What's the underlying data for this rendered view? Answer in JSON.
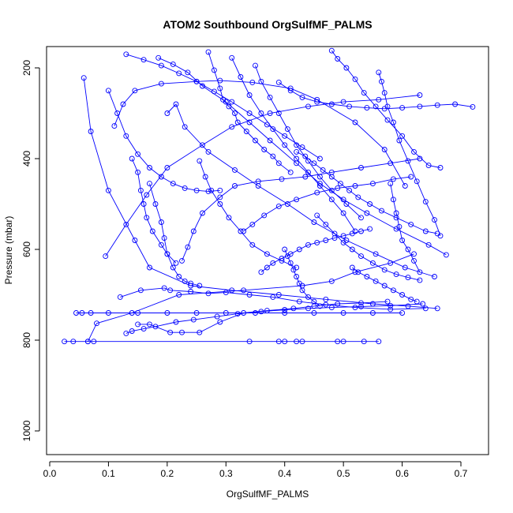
{
  "chart_data": {
    "type": "line",
    "title": "ATOM2 Southbound OrgSulfMF_PALMS",
    "xlabel": "OrgSulfMF_PALMS",
    "ylabel": "Pressure (mbar)",
    "xlim": [
      0.0,
      0.75
    ],
    "ylim": [
      1050,
      160
    ],
    "y_reversed": true,
    "x_ticks": [
      0.0,
      0.1,
      0.2,
      0.3,
      0.4,
      0.5,
      0.6,
      0.7
    ],
    "y_ticks": [
      200,
      400,
      600,
      800,
      1000
    ],
    "grid": false,
    "color": "#0000ff",
    "marker": "open-circle",
    "series": [
      {
        "x": [
          0.025,
          0.04,
          0.065,
          0.075,
          0.34,
          0.39,
          0.4,
          0.42,
          0.43,
          0.49,
          0.5,
          0.535,
          0.56
        ],
        "y": [
          803,
          803,
          803,
          803,
          803,
          803,
          803,
          803,
          803,
          803,
          803,
          803,
          803
        ]
      },
      {
        "x": [
          0.045,
          0.055,
          0.07,
          0.1,
          0.15,
          0.2,
          0.25,
          0.3,
          0.35,
          0.4,
          0.45,
          0.5,
          0.55,
          0.6
        ],
        "y": [
          740,
          740,
          740,
          740,
          740,
          740,
          740,
          740,
          740,
          740,
          740,
          740,
          740,
          740
        ]
      },
      {
        "x": [
          0.065,
          0.08,
          0.14,
          0.22,
          0.33,
          0.43,
          0.48,
          0.52,
          0.58,
          0.62
        ],
        "y": [
          803,
          763,
          740,
          700,
          690,
          680,
          670,
          650,
          630,
          610
        ]
      },
      {
        "x": [
          0.058,
          0.07,
          0.1,
          0.145,
          0.17,
          0.24,
          0.31,
          0.39,
          0.47,
          0.55,
          0.61,
          0.66
        ],
        "y": [
          222,
          340,
          470,
          580,
          640,
          680,
          690,
          700,
          710,
          720,
          725,
          730
        ]
      },
      {
        "x": [
          0.095,
          0.13,
          0.165,
          0.2,
          0.26,
          0.31,
          0.375,
          0.44,
          0.5,
          0.56,
          0.63
        ],
        "y": [
          615,
          545,
          480,
          420,
          370,
          330,
          300,
          285,
          275,
          270,
          260
        ]
      },
      {
        "x": [
          0.11,
          0.125,
          0.145,
          0.19,
          0.25,
          0.29,
          0.345,
          0.41,
          0.455,
          0.52,
          0.57,
          0.605
        ],
        "y": [
          328,
          280,
          250,
          235,
          230,
          228,
          232,
          245,
          270,
          320,
          380,
          460
        ]
      },
      {
        "x": [
          0.12,
          0.155,
          0.195,
          0.205,
          0.24,
          0.27,
          0.3,
          0.34,
          0.38,
          0.425,
          0.47,
          0.52,
          0.58,
          0.64
        ],
        "y": [
          705,
          690,
          685,
          690,
          693,
          697,
          695,
          700,
          705,
          715,
          722,
          728,
          732,
          730
        ]
      },
      {
        "x": [
          0.13,
          0.14,
          0.16,
          0.18,
          0.215,
          0.245,
          0.285,
          0.32,
          0.36,
          0.4,
          0.44,
          0.48,
          0.53,
          0.58,
          0.635
        ],
        "y": [
          785,
          780,
          775,
          770,
          760,
          755,
          748,
          742,
          737,
          733,
          730,
          728,
          726,
          724,
          720
        ]
      },
      {
        "x": [
          0.15,
          0.17,
          0.205,
          0.225,
          0.255,
          0.29,
          0.33,
          0.37,
          0.415,
          0.45,
          0.49,
          0.53,
          0.575
        ],
        "y": [
          765,
          765,
          783,
          783,
          783,
          760,
          740,
          735,
          730,
          725,
          720,
          718,
          715
        ]
      },
      {
        "x": [
          0.185,
          0.21,
          0.235,
          0.26,
          0.3,
          0.34,
          0.375,
          0.42,
          0.46,
          0.5,
          0.54,
          0.59,
          0.645,
          0.675
        ],
        "y": [
          178,
          192,
          210,
          240,
          275,
          320,
          360,
          410,
          455,
          490,
          520,
          555,
          590,
          612
        ]
      },
      {
        "x": [
          0.2,
          0.215,
          0.23,
          0.27,
          0.315,
          0.355,
          0.405,
          0.45,
          0.505,
          0.555,
          0.605,
          0.655
        ],
        "y": [
          300,
          280,
          330,
          385,
          425,
          460,
          500,
          540,
          580,
          610,
          640,
          660
        ]
      },
      {
        "x": [
          0.225,
          0.235,
          0.245,
          0.26,
          0.29,
          0.315,
          0.355,
          0.395,
          0.435,
          0.48,
          0.53,
          0.58,
          0.63
        ],
        "y": [
          625,
          595,
          560,
          520,
          485,
          460,
          450,
          445,
          440,
          430,
          420,
          410,
          400
        ]
      },
      {
        "x": [
          0.27,
          0.28,
          0.29,
          0.295,
          0.305,
          0.315,
          0.32,
          0.335,
          0.35,
          0.365,
          0.38,
          0.39,
          0.41
        ],
        "y": [
          165,
          205,
          245,
          270,
          285,
          300,
          320,
          340,
          360,
          380,
          395,
          410,
          430
        ]
      },
      {
        "x": [
          0.31,
          0.325,
          0.34,
          0.36,
          0.38,
          0.4,
          0.42,
          0.44,
          0.46,
          0.48,
          0.5,
          0.52
        ],
        "y": [
          178,
          220,
          260,
          300,
          335,
          370,
          400,
          430,
          460,
          490,
          520,
          560
        ]
      },
      {
        "x": [
          0.33,
          0.345,
          0.365,
          0.39,
          0.42,
          0.455,
          0.49,
          0.52,
          0.55,
          0.585,
          0.615
        ],
        "y": [
          560,
          545,
          525,
          505,
          490,
          475,
          465,
          460,
          455,
          445,
          440
        ]
      },
      {
        "x": [
          0.36,
          0.37,
          0.38,
          0.395,
          0.41,
          0.425,
          0.44,
          0.455,
          0.47,
          0.485,
          0.5,
          0.515,
          0.53,
          0.545
        ],
        "y": [
          650,
          640,
          630,
          620,
          610,
          600,
          590,
          585,
          580,
          575,
          570,
          565,
          560,
          555
        ]
      },
      {
        "x": [
          0.39,
          0.41,
          0.43,
          0.455,
          0.48,
          0.51,
          0.54,
          0.57,
          0.6,
          0.63,
          0.66,
          0.69,
          0.72
        ],
        "y": [
          232,
          250,
          265,
          275,
          280,
          285,
          288,
          290,
          288,
          285,
          282,
          280,
          286
        ]
      },
      {
        "x": [
          0.42,
          0.435,
          0.45,
          0.465,
          0.48,
          0.495,
          0.51,
          0.525,
          0.545,
          0.565,
          0.59,
          0.615,
          0.64,
          0.66
        ],
        "y": [
          385,
          395,
          410,
          425,
          440,
          455,
          470,
          485,
          500,
          515,
          530,
          545,
          560,
          565
        ]
      },
      {
        "x": [
          0.455,
          0.47,
          0.485,
          0.5,
          0.515,
          0.53,
          0.55,
          0.57,
          0.59,
          0.61,
          0.63
        ],
        "y": [
          525,
          545,
          565,
          585,
          600,
          615,
          630,
          645,
          655,
          662,
          668
        ]
      },
      {
        "x": [
          0.48,
          0.49,
          0.505,
          0.52,
          0.535,
          0.555,
          0.575,
          0.6,
          0.62,
          0.645,
          0.665
        ],
        "y": [
          162,
          180,
          200,
          225,
          255,
          285,
          315,
          350,
          385,
          415,
          420
        ]
      },
      {
        "x": [
          0.515,
          0.525,
          0.54,
          0.555,
          0.57,
          0.585,
          0.6,
          0.615,
          0.625
        ],
        "y": [
          640,
          650,
          660,
          670,
          680,
          690,
          700,
          710,
          715
        ]
      },
      {
        "x": [
          0.17,
          0.18,
          0.19,
          0.195,
          0.2,
          0.21,
          0.22,
          0.23,
          0.24,
          0.255
        ],
        "y": [
          455,
          500,
          540,
          575,
          610,
          640,
          660,
          670,
          675,
          680
        ]
      },
      {
        "x": [
          0.14,
          0.15,
          0.155,
          0.16,
          0.165,
          0.175,
          0.19,
          0.2,
          0.215
        ],
        "y": [
          400,
          430,
          470,
          500,
          530,
          560,
          590,
          610,
          630
        ]
      },
      {
        "x": [
          0.255,
          0.265,
          0.275,
          0.29,
          0.305,
          0.325,
          0.345,
          0.37,
          0.395,
          0.42
        ],
        "y": [
          405,
          440,
          470,
          500,
          530,
          560,
          590,
          610,
          625,
          640
        ]
      },
      {
        "x": [
          0.13,
          0.16,
          0.19,
          0.22,
          0.25,
          0.28,
          0.31,
          0.34,
          0.37,
          0.4,
          0.43,
          0.46
        ],
        "y": [
          170,
          182,
          195,
          212,
          230,
          252,
          275,
          300,
          325,
          350,
          375,
          400
        ]
      },
      {
        "x": [
          0.58,
          0.585,
          0.59,
          0.595,
          0.6,
          0.61,
          0.62,
          0.63
        ],
        "y": [
          455,
          490,
          520,
          550,
          580,
          600,
          625,
          650
        ]
      },
      {
        "x": [
          0.35,
          0.36,
          0.375,
          0.39,
          0.405,
          0.42,
          0.44,
          0.46,
          0.48,
          0.505,
          0.53
        ],
        "y": [
          195,
          230,
          265,
          300,
          335,
          370,
          405,
          440,
          470,
          500,
          530
        ]
      },
      {
        "x": [
          0.4,
          0.405,
          0.41,
          0.415,
          0.42,
          0.425,
          0.43,
          0.44,
          0.45,
          0.46
        ],
        "y": [
          600,
          615,
          630,
          645,
          660,
          675,
          690,
          705,
          715,
          725
        ]
      },
      {
        "x": [
          0.1,
          0.115,
          0.13,
          0.15,
          0.17,
          0.19,
          0.21,
          0.23,
          0.25,
          0.27,
          0.29
        ],
        "y": [
          250,
          300,
          350,
          390,
          420,
          440,
          455,
          465,
          470,
          472,
          470
        ]
      },
      {
        "x": [
          0.56,
          0.565,
          0.57,
          0.575,
          0.585,
          0.595,
          0.61,
          0.625,
          0.64,
          0.655,
          0.665
        ],
        "y": [
          210,
          230,
          255,
          285,
          320,
          360,
          405,
          450,
          495,
          535,
          570
        ]
      }
    ]
  }
}
